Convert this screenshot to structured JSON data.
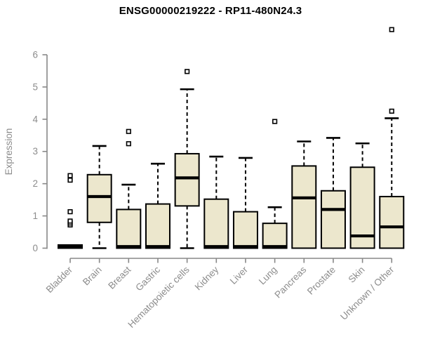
{
  "title": "ENSG00000219222 - RP11-480N24.3",
  "chart_data": {
    "type": "boxplot",
    "title": "ENSG00000219222 - RP11-480N24.3",
    "xlabel": "",
    "ylabel": "Expression",
    "ylim": [
      0,
      6
    ],
    "yticks": [
      "0",
      "1",
      "2",
      "3",
      "4",
      "5",
      "6"
    ],
    "grid": "off",
    "legend": "none",
    "categories": [
      "Bladder",
      "Brain",
      "Breast",
      "Gastric",
      "Hematopoietic cells",
      "Kidney",
      "Liver",
      "Lung",
      "Pancreas",
      "Prostate",
      "Skin",
      "Unknown / Other"
    ],
    "series": [
      {
        "name": "Bladder",
        "min": 0,
        "q1": 0,
        "median": 0.05,
        "q3": 0.1,
        "max": 0.1,
        "outliers": [
          0.72,
          0.78,
          0.84,
          1.13,
          2.11,
          2.25
        ]
      },
      {
        "name": "Brain",
        "min": 0,
        "q1": 0.8,
        "median": 1.6,
        "q3": 2.28,
        "max": 3.17,
        "outliers": []
      },
      {
        "name": "Breast",
        "min": 0,
        "q1": 0,
        "median": 0.05,
        "q3": 1.2,
        "max": 1.97,
        "outliers": [
          3.24,
          3.62
        ]
      },
      {
        "name": "Gastric",
        "min": 0,
        "q1": 0,
        "median": 0.05,
        "q3": 1.37,
        "max": 2.62,
        "outliers": []
      },
      {
        "name": "Hematopoietic cells",
        "min": 0,
        "q1": 1.31,
        "median": 2.18,
        "q3": 2.93,
        "max": 4.93,
        "outliers": [
          5.48
        ]
      },
      {
        "name": "Kidney",
        "min": 0,
        "q1": 0,
        "median": 0.05,
        "q3": 1.52,
        "max": 2.84,
        "outliers": []
      },
      {
        "name": "Liver",
        "min": 0,
        "q1": 0,
        "median": 0.05,
        "q3": 1.13,
        "max": 2.8,
        "outliers": []
      },
      {
        "name": "Lung",
        "min": 0,
        "q1": 0,
        "median": 0.05,
        "q3": 0.77,
        "max": 1.27,
        "outliers": [
          3.93
        ]
      },
      {
        "name": "Pancreas",
        "min": 0,
        "q1": 0,
        "median": 1.56,
        "q3": 2.55,
        "max": 3.31,
        "outliers": []
      },
      {
        "name": "Prostate",
        "min": 0,
        "q1": 0,
        "median": 1.2,
        "q3": 1.78,
        "max": 3.42,
        "outliers": []
      },
      {
        "name": "Skin",
        "min": 0,
        "q1": 0,
        "median": 0.38,
        "q3": 2.51,
        "max": 3.25,
        "outliers": []
      },
      {
        "name": "Unknown / Other",
        "min": 0,
        "q1": 0,
        "median": 0.66,
        "q3": 1.6,
        "max": 4.03,
        "outliers": [
          4.25,
          6.78
        ]
      }
    ],
    "colors": {
      "box_fill": "#ece7cd",
      "box_border": "#000000",
      "median": "#000000",
      "whisker": "#000000",
      "outlier_fill": "#ffffff",
      "axis": "#888888",
      "tick_text": "#8c8c8c",
      "title_text": "#000000"
    }
  }
}
